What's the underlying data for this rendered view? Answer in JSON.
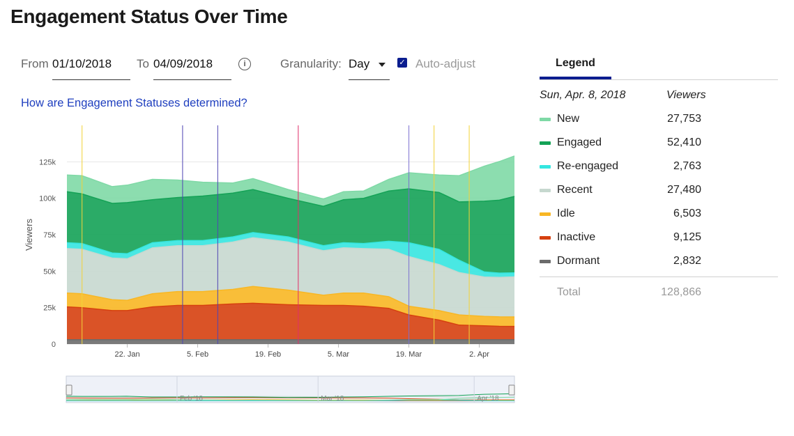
{
  "page": {
    "title": "Engagement Status Over Time"
  },
  "controls": {
    "from_label": "From",
    "from_value": "01/10/2018",
    "to_label": "To",
    "to_value": "04/09/2018",
    "granularity_label": "Granularity:",
    "granularity_value": "Day",
    "auto_adjust_label": "Auto-adjust",
    "auto_adjust_checked": true
  },
  "help_link": "How are Engagement Statuses determined?",
  "legend": {
    "tab_label": "Legend",
    "date": "Sun, Apr. 8, 2018",
    "viewers_header": "Viewers",
    "items": [
      {
        "name": "New",
        "value": "27,753",
        "color": "#7fd9a6"
      },
      {
        "name": "Engaged",
        "value": "52,410",
        "color": "#14a256"
      },
      {
        "name": "Re-engaged",
        "value": "2,763",
        "color": "#35e6e0"
      },
      {
        "name": "Recent",
        "value": "27,480",
        "color": "#c6d8cf"
      },
      {
        "name": "Idle",
        "value": "6,503",
        "color": "#f8b724"
      },
      {
        "name": "Inactive",
        "value": "9,125",
        "color": "#d6400f"
      },
      {
        "name": "Dormant",
        "value": "2,832",
        "color": "#6b6b6b"
      }
    ],
    "total_label": "Total",
    "total_value": "128,866"
  },
  "navigator": {
    "labels": [
      "Feb '18",
      "Mar '18",
      "Apr '18"
    ]
  },
  "chart_data": {
    "type": "area",
    "stacked": true,
    "xlabel": "",
    "ylabel": "Viewers",
    "x_range": [
      "2018-01-10",
      "2018-04-09"
    ],
    "ylim": [
      0,
      150000
    ],
    "y_ticks": [
      {
        "v": 0,
        "label": "0"
      },
      {
        "v": 25000,
        "label": "25k"
      },
      {
        "v": 50000,
        "label": "50k"
      },
      {
        "v": 75000,
        "label": "75k"
      },
      {
        "v": 100000,
        "label": "100k"
      },
      {
        "v": 125000,
        "label": "125k"
      }
    ],
    "x_ticks": [
      {
        "date": "2018-01-22",
        "label": "22. Jan"
      },
      {
        "date": "2018-02-05",
        "label": "5. Feb"
      },
      {
        "date": "2018-02-19",
        "label": "19. Feb"
      },
      {
        "date": "2018-03-05",
        "label": "5. Mar"
      },
      {
        "date": "2018-03-19",
        "label": "19. Mar"
      },
      {
        "date": "2018-04-02",
        "label": "2. Apr"
      }
    ],
    "grid": true,
    "x": [
      "2018-01-10",
      "2018-01-13",
      "2018-01-19",
      "2018-01-22",
      "2018-01-27",
      "2018-02-01",
      "2018-02-06",
      "2018-02-12",
      "2018-02-16",
      "2018-02-23",
      "2018-03-02",
      "2018-03-06",
      "2018-03-10",
      "2018-03-15",
      "2018-03-19",
      "2018-03-25",
      "2018-03-29",
      "2018-04-03",
      "2018-04-06",
      "2018-04-09"
    ],
    "series": [
      {
        "name": "Dormant",
        "color": "#6b6b6b",
        "values": [
          3000,
          3000,
          3000,
          3000,
          3000,
          3000,
          3000,
          3000,
          3000,
          3000,
          3000,
          3000,
          3000,
          3000,
          3000,
          3000,
          3000,
          3000,
          3000,
          3000
        ]
      },
      {
        "name": "Inactive",
        "color": "#d6400f",
        "values": [
          22500,
          22000,
          20000,
          20000,
          22500,
          23500,
          23500,
          24500,
          25000,
          24000,
          23500,
          23500,
          23000,
          21500,
          17000,
          13500,
          10000,
          9500,
          9200,
          9125
        ]
      },
      {
        "name": "Idle",
        "color": "#f8b724",
        "values": [
          9500,
          9500,
          7500,
          7000,
          9000,
          9500,
          9500,
          10000,
          11500,
          10000,
          7000,
          8500,
          9000,
          8000,
          6000,
          6500,
          7000,
          6500,
          6500,
          6500
        ]
      },
      {
        "name": "Recent",
        "color": "#c6d8cf",
        "values": [
          30500,
          30500,
          28500,
          28500,
          31500,
          31500,
          31500,
          32500,
          33500,
          33000,
          30500,
          31000,
          30500,
          32500,
          34000,
          31500,
          29000,
          27000,
          27000,
          27480
        ]
      },
      {
        "name": "Re-engaged",
        "color": "#35e6e0",
        "values": [
          4000,
          4000,
          3500,
          3500,
          3500,
          3500,
          3500,
          3500,
          3500,
          3500,
          3500,
          3500,
          3500,
          5500,
          9500,
          10500,
          8500,
          3500,
          3000,
          2763
        ]
      },
      {
        "name": "Engaged",
        "color": "#14a256",
        "values": [
          35000,
          34000,
          34000,
          35000,
          29500,
          29500,
          30500,
          30000,
          29500,
          26500,
          27000,
          29500,
          31000,
          34500,
          37000,
          39000,
          40000,
          48500,
          50000,
          52410
        ]
      },
      {
        "name": "New",
        "color": "#7fd9a6",
        "values": [
          11500,
          12500,
          11500,
          12000,
          14000,
          12000,
          9500,
          7000,
          7500,
          6000,
          5000,
          5500,
          5000,
          8000,
          11000,
          12000,
          18000,
          24000,
          26500,
          27753
        ]
      }
    ],
    "annotations": [
      {
        "date": "2018-01-13",
        "color": "#f2d23a"
      },
      {
        "date": "2018-02-02",
        "color": "#5046b4"
      },
      {
        "date": "2018-02-09",
        "color": "#5046b4"
      },
      {
        "date": "2018-02-25",
        "color": "#e0306a"
      },
      {
        "date": "2018-03-19",
        "color": "#7a6fd0"
      },
      {
        "date": "2018-03-24",
        "color": "#f2d23a"
      },
      {
        "date": "2018-03-31",
        "color": "#f2d23a"
      }
    ]
  }
}
